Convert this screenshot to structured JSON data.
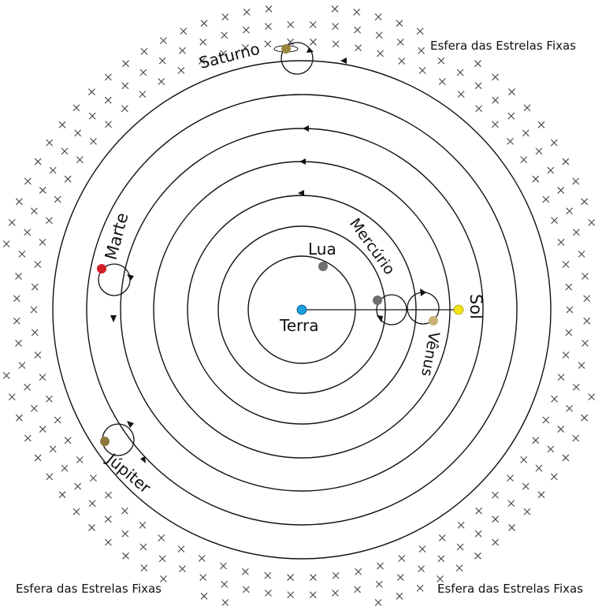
{
  "labels": {
    "fixed_stars_top_right": "Esfera das Estrelas Fixas",
    "fixed_stars_bottom_left": "Esfera das Estrelas Fixas",
    "fixed_stars_bottom_right": "Esfera das Estrelas Fixas",
    "earth": "Terra",
    "moon": "Lua",
    "mercury": "Mercúrio",
    "venus": "Vênus",
    "sun": "Sol",
    "mars": "Marte",
    "jupiter": "Júpiter",
    "saturn": "Saturno"
  },
  "colors": {
    "earth": "#1a9fe0",
    "moon": "#6f6f6f",
    "mercury": "#6f6f6f",
    "venus": "#c7b07a",
    "sun": "#f2e318",
    "mars": "#d11f26",
    "jupiter": "#8c7a3a",
    "saturn": "#9a8540",
    "orbit_stroke": "#111111",
    "star_marks": "#444444"
  },
  "icons": {
    "stars": "x-mark",
    "orbit_direction": "arrowhead"
  }
}
